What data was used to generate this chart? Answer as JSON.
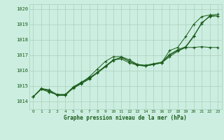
{
  "xlabel": "Graphe pression niveau de la mer (hPa)",
  "bg_color": "#cceee0",
  "grid_color": "#aacfbe",
  "line_color": "#1a5c1a",
  "xlim": [
    -0.5,
    23.5
  ],
  "ylim": [
    1013.5,
    1020.3
  ],
  "yticks": [
    1014,
    1015,
    1016,
    1017,
    1018,
    1019,
    1020
  ],
  "xticks": [
    0,
    1,
    2,
    3,
    4,
    5,
    6,
    7,
    8,
    9,
    10,
    11,
    12,
    13,
    14,
    15,
    16,
    17,
    18,
    19,
    20,
    21,
    22,
    23
  ],
  "series": [
    [
      1014.3,
      1014.8,
      1014.7,
      1014.4,
      1014.4,
      1014.9,
      1015.2,
      1015.6,
      1016.1,
      1016.6,
      1016.9,
      1016.9,
      1016.7,
      1016.4,
      1016.3,
      1016.4,
      1016.5,
      1017.3,
      1017.5,
      1018.2,
      1019.0,
      1019.5,
      1019.6,
      1019.65
    ],
    [
      1014.3,
      1014.8,
      1014.6,
      1014.45,
      1014.45,
      1014.85,
      1015.15,
      1015.45,
      1015.85,
      1016.25,
      1016.7,
      1016.75,
      1016.5,
      1016.35,
      1016.3,
      1016.4,
      1016.5,
      1016.9,
      1017.25,
      1017.5,
      1017.5,
      1017.55,
      1017.5,
      1017.5
    ],
    [
      1014.3,
      1014.8,
      1014.7,
      1014.4,
      1014.4,
      1014.9,
      1015.2,
      1015.5,
      1015.9,
      1016.3,
      1016.7,
      1016.85,
      1016.6,
      1016.35,
      1016.3,
      1016.4,
      1016.5,
      1017.0,
      1017.3,
      1017.5,
      1018.2,
      1019.1,
      1019.5,
      1019.55
    ],
    [
      1014.3,
      1014.85,
      1014.75,
      1014.45,
      1014.45,
      1014.95,
      1015.25,
      1015.55,
      1015.85,
      1016.25,
      1016.65,
      1016.85,
      1016.6,
      1016.4,
      1016.35,
      1016.45,
      1016.55,
      1017.05,
      1017.35,
      1017.55,
      1018.25,
      1019.05,
      1019.55,
      1019.55
    ]
  ]
}
